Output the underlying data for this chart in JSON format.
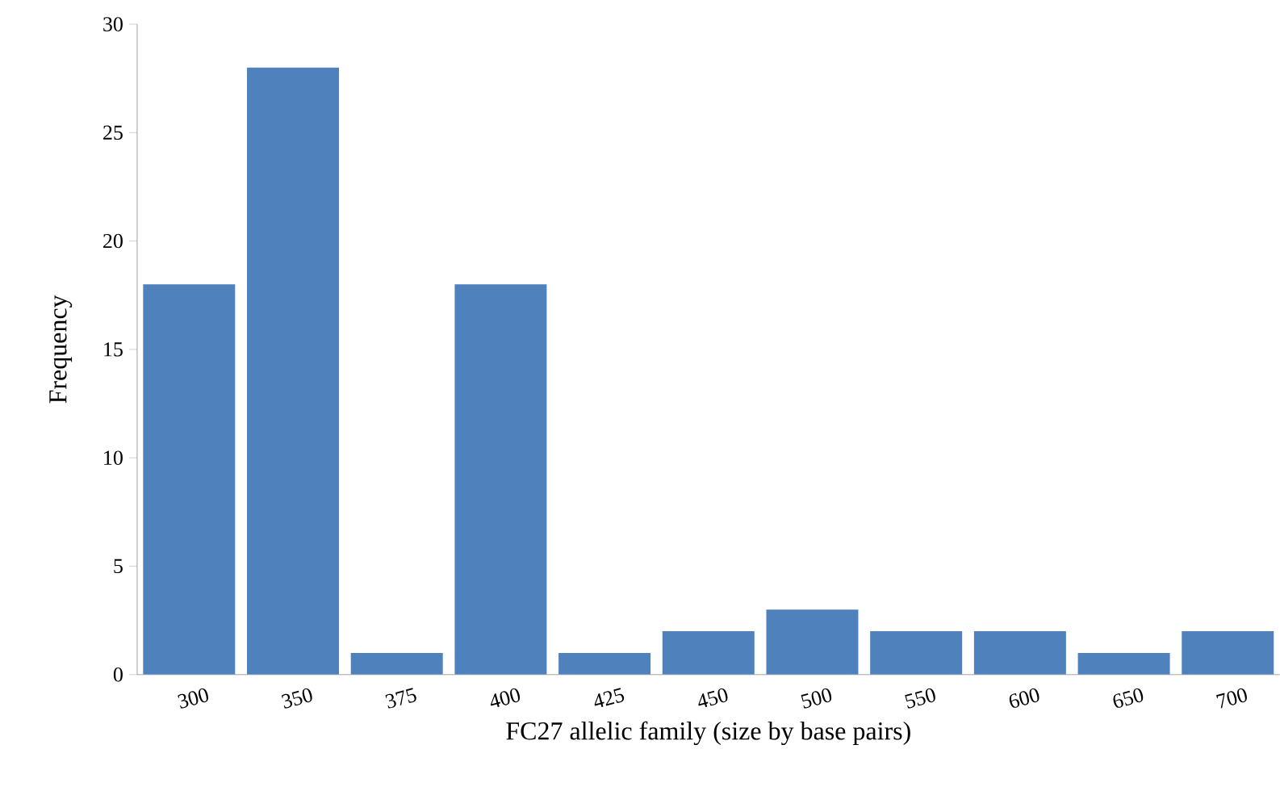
{
  "chart_data": {
    "type": "bar",
    "xlabel": "FC27 allelic family (size by base pairs)",
    "ylabel": "Frequency",
    "categories": [
      "300",
      "350",
      "375",
      "400",
      "425",
      "450",
      "500",
      "550",
      "600",
      "650",
      "700"
    ],
    "values": [
      18,
      28,
      1,
      18,
      1,
      2,
      3,
      2,
      2,
      1,
      2
    ],
    "color": "#4f81bd",
    "ylim": [
      0,
      30
    ],
    "yticks": [
      0,
      5,
      10,
      15,
      20,
      25,
      30
    ]
  }
}
